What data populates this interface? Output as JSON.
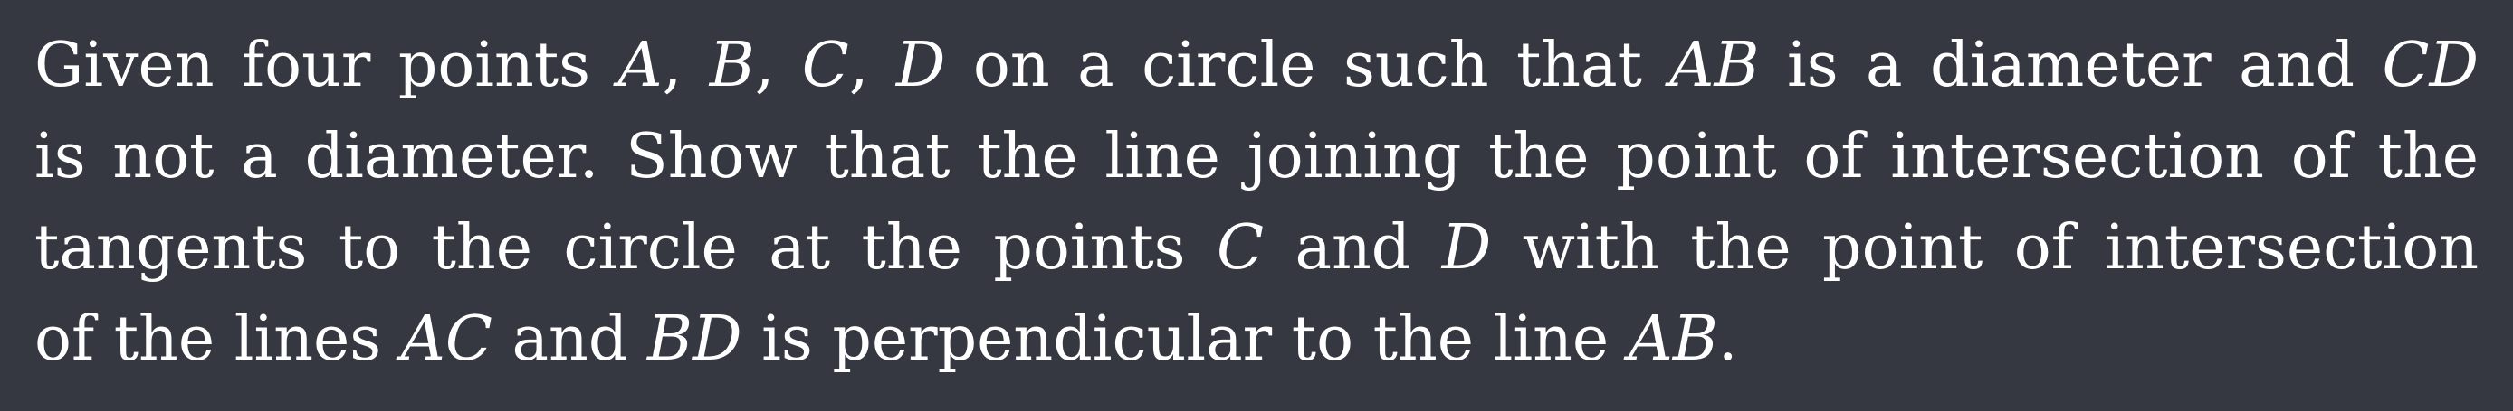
{
  "problem": {
    "lines": [
      [
        {
          "type": "text",
          "value": "Given four points "
        },
        {
          "type": "math",
          "value": "A"
        },
        {
          "type": "text",
          "value": ", "
        },
        {
          "type": "math",
          "value": "B"
        },
        {
          "type": "text",
          "value": ", "
        },
        {
          "type": "math",
          "value": "C"
        },
        {
          "type": "text",
          "value": ", "
        },
        {
          "type": "math",
          "value": "D"
        },
        {
          "type": "text",
          "value": " on a circle such that "
        },
        {
          "type": "math",
          "value": "AB"
        },
        {
          "type": "text",
          "value": " is a diameter and "
        },
        {
          "type": "math",
          "value": "CD"
        }
      ],
      [
        {
          "type": "text",
          "value": "is not a diameter. Show that the line joining the point of intersection of the"
        }
      ],
      [
        {
          "type": "text",
          "value": "tangents to the circle at the points "
        },
        {
          "type": "math",
          "value": "C"
        },
        {
          "type": "text",
          "value": " and "
        },
        {
          "type": "math",
          "value": "D"
        },
        {
          "type": "text",
          "value": " with the point of intersection"
        }
      ],
      [
        {
          "type": "text",
          "value": "of the lines "
        },
        {
          "type": "math",
          "value": "AC"
        },
        {
          "type": "text",
          "value": " and "
        },
        {
          "type": "math",
          "value": "BD"
        },
        {
          "type": "text",
          "value": " is perpendicular to the line "
        },
        {
          "type": "math",
          "value": "AB"
        },
        {
          "type": "text",
          "value": "."
        }
      ]
    ]
  }
}
